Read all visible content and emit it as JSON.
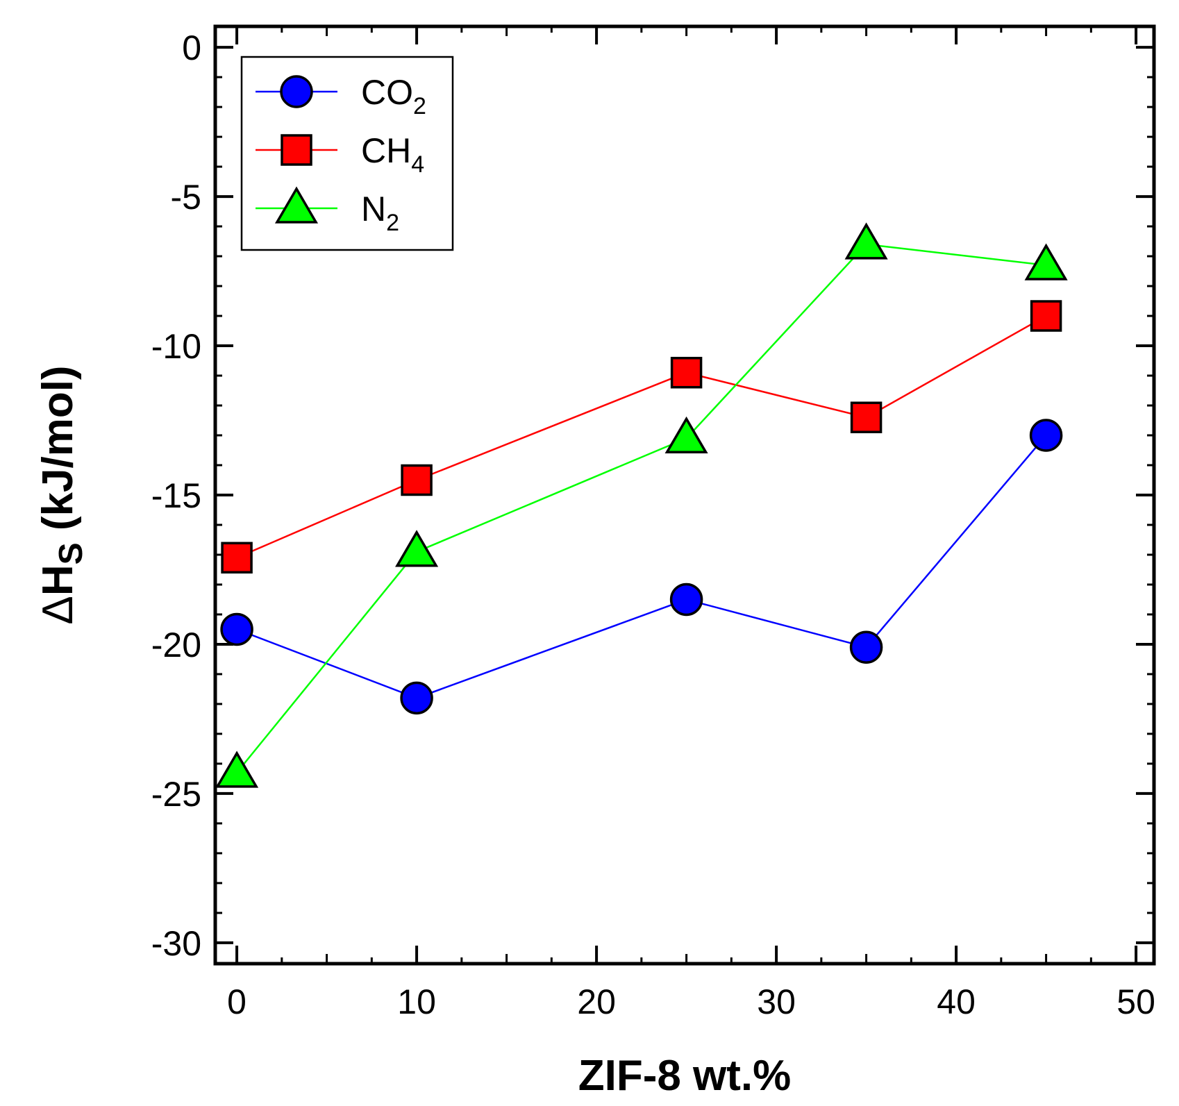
{
  "chart_data": {
    "type": "line",
    "xlabel": "ZIF-8 wt.%",
    "ylabel": "ΔHS (kJ/mol)",
    "ylabel_parts": {
      "delta": "Δ",
      "main": "H",
      "sub": "S",
      "rest": " (kJ/mol)"
    },
    "xlim": [
      -1.2,
      51
    ],
    "ylim": [
      -30.7,
      0.7
    ],
    "xticks": [
      0,
      10,
      20,
      30,
      40,
      50
    ],
    "yticks": [
      0,
      -5,
      -10,
      -15,
      -20,
      -25,
      -30
    ],
    "xtick_labels": [
      "0",
      "10",
      "20",
      "30",
      "40",
      "50"
    ],
    "ytick_labels": [
      "0",
      "-5",
      "-10",
      "-15",
      "-20",
      "-25",
      "-30"
    ],
    "x": [
      0,
      10,
      25,
      35,
      45
    ],
    "series": [
      {
        "name": "CO2",
        "label_main": "CO",
        "label_sub": "2",
        "marker": "circle",
        "color": "#0000ff",
        "fill": "#0000ff",
        "values": [
          -19.5,
          -21.8,
          -18.5,
          -20.1,
          -13.0
        ]
      },
      {
        "name": "CH4",
        "label_main": "CH",
        "label_sub": "4",
        "marker": "square",
        "color": "#ff0000",
        "fill": "#ff0000",
        "values": [
          -17.1,
          -14.5,
          -10.9,
          -12.4,
          -9.0
        ]
      },
      {
        "name": "N2",
        "label_main": "N",
        "label_sub": "2",
        "marker": "triangle",
        "color": "#00ff00",
        "fill": "#00ff00",
        "values": [
          -24.3,
          -16.9,
          -13.1,
          -6.6,
          -7.3
        ]
      }
    ],
    "legend_position": "top-left",
    "grid": false
  }
}
